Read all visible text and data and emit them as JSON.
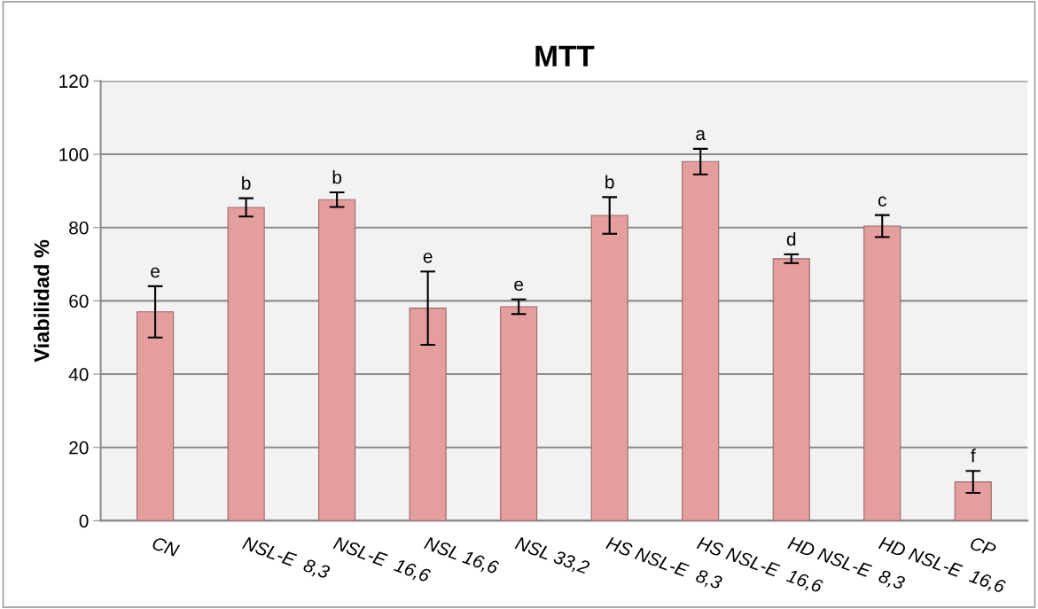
{
  "chart_data": {
    "type": "bar",
    "title": "MTT",
    "ylabel": "Viabilidad %",
    "categories": [
      "CN",
      "NSL-E  8,3",
      "NSL-E  16,6",
      "NSL 16,6",
      "NSL 33,2",
      "HS NSL-E  8,3",
      "HS NSL-E  16,6",
      "HD NSL-E  8,3",
      "HD NSL-E  16,6",
      "CP"
    ],
    "values": [
      57,
      85.5,
      87.6,
      58,
      58.4,
      83.3,
      98,
      71.5,
      80.4,
      10.6
    ],
    "errors": [
      7,
      2.5,
      2,
      10,
      2,
      5,
      3.5,
      1.2,
      3,
      3
    ],
    "color": "#e59e9e",
    "ylim": [
      0,
      120
    ],
    "yticks": [
      0,
      20,
      40,
      60,
      80,
      100,
      120
    ],
    "grid": "y",
    "annotations": [
      {
        "text": "e",
        "x": "CN",
        "y": 64
      },
      {
        "text": "b",
        "x": "NSL-E  8,3",
        "y": 88
      },
      {
        "text": "b",
        "x": "NSL-E  16,6",
        "y": 89.6
      },
      {
        "text": "e",
        "x": "NSL 16,6",
        "y": 68
      },
      {
        "text": "e",
        "x": "NSL 33,2",
        "y": 60.4
      },
      {
        "text": "b",
        "x": "HS NSL-E  8,3",
        "y": 88.3
      },
      {
        "text": "a",
        "x": "HS NSL-E  16,6",
        "y": 101.5
      },
      {
        "text": "d",
        "x": "HD NSL-E  8,3",
        "y": 72.7
      },
      {
        "text": "c",
        "x": "HD NSL-E  16,6",
        "y": 83.4
      },
      {
        "text": "f",
        "x": "CP",
        "y": 13.6
      }
    ]
  }
}
